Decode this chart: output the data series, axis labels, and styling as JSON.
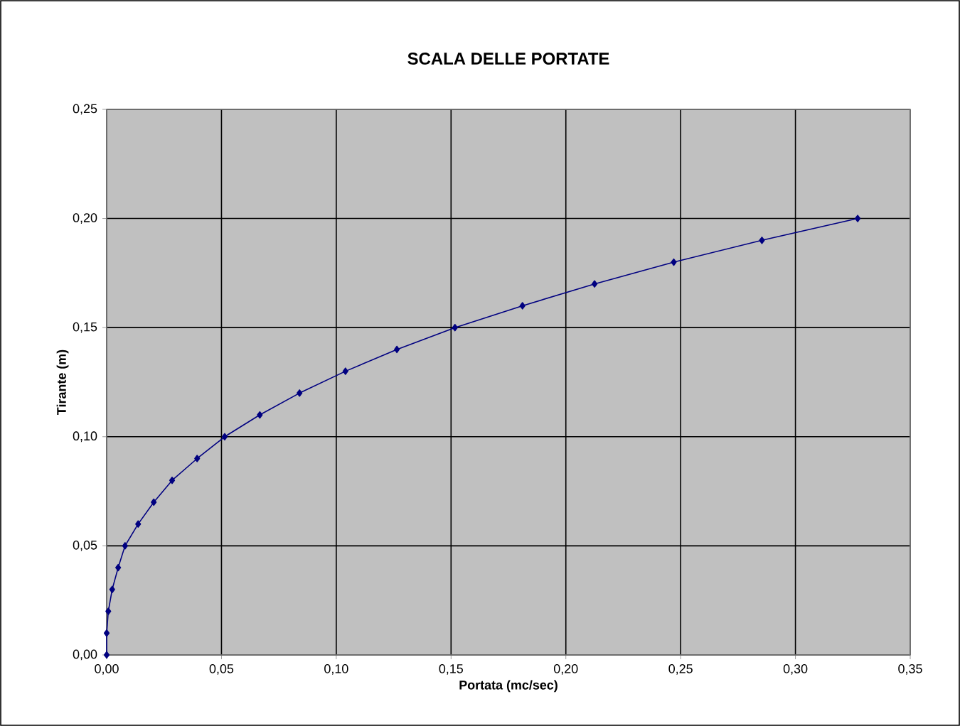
{
  "chart_data": {
    "type": "line",
    "title": "SCALA DELLE PORTATE",
    "xlabel": "Portata (mc/sec)",
    "ylabel": "Tirante  (m)",
    "x": [
      0,
      0,
      0.0007,
      0.0024,
      0.005,
      0.008,
      0.0137,
      0.0205,
      0.0285,
      0.0394,
      0.0514,
      0.0667,
      0.084,
      0.104,
      0.1264,
      0.1517,
      0.1811,
      0.2125,
      0.247,
      0.2854,
      0.3271
    ],
    "series": [
      {
        "color": "#000080",
        "values": [
          0,
          0.01,
          0.02,
          0.03,
          0.04,
          0.05,
          0.06,
          0.07,
          0.08,
          0.09,
          0.1,
          0.11,
          0.12,
          0.13,
          0.14,
          0.15,
          0.16,
          0.17,
          0.18,
          0.19,
          0.2
        ]
      }
    ],
    "xlim": [
      0,
      0.35
    ],
    "ylim": [
      0,
      0.25
    ],
    "xticks": [
      {
        "value": 0,
        "label": "0,00"
      },
      {
        "value": 0.05,
        "label": "0,05"
      },
      {
        "value": 0.1,
        "label": "0,10"
      },
      {
        "value": 0.15,
        "label": "0,15"
      },
      {
        "value": 0.2,
        "label": "0,20"
      },
      {
        "value": 0.25,
        "label": "0,25"
      },
      {
        "value": 0.3,
        "label": "0,30"
      },
      {
        "value": 0.35,
        "label": "0,35"
      }
    ],
    "yticks": [
      {
        "value": 0,
        "label": "0,00"
      },
      {
        "value": 0.05,
        "label": "0,05"
      },
      {
        "value": 0.1,
        "label": "0,10"
      },
      {
        "value": 0.15,
        "label": "0,15"
      },
      {
        "value": 0.2,
        "label": "0,20"
      },
      {
        "value": 0.25,
        "label": "0,25"
      }
    ],
    "grid": true,
    "marker": "diamond",
    "line_style": "solid"
  }
}
